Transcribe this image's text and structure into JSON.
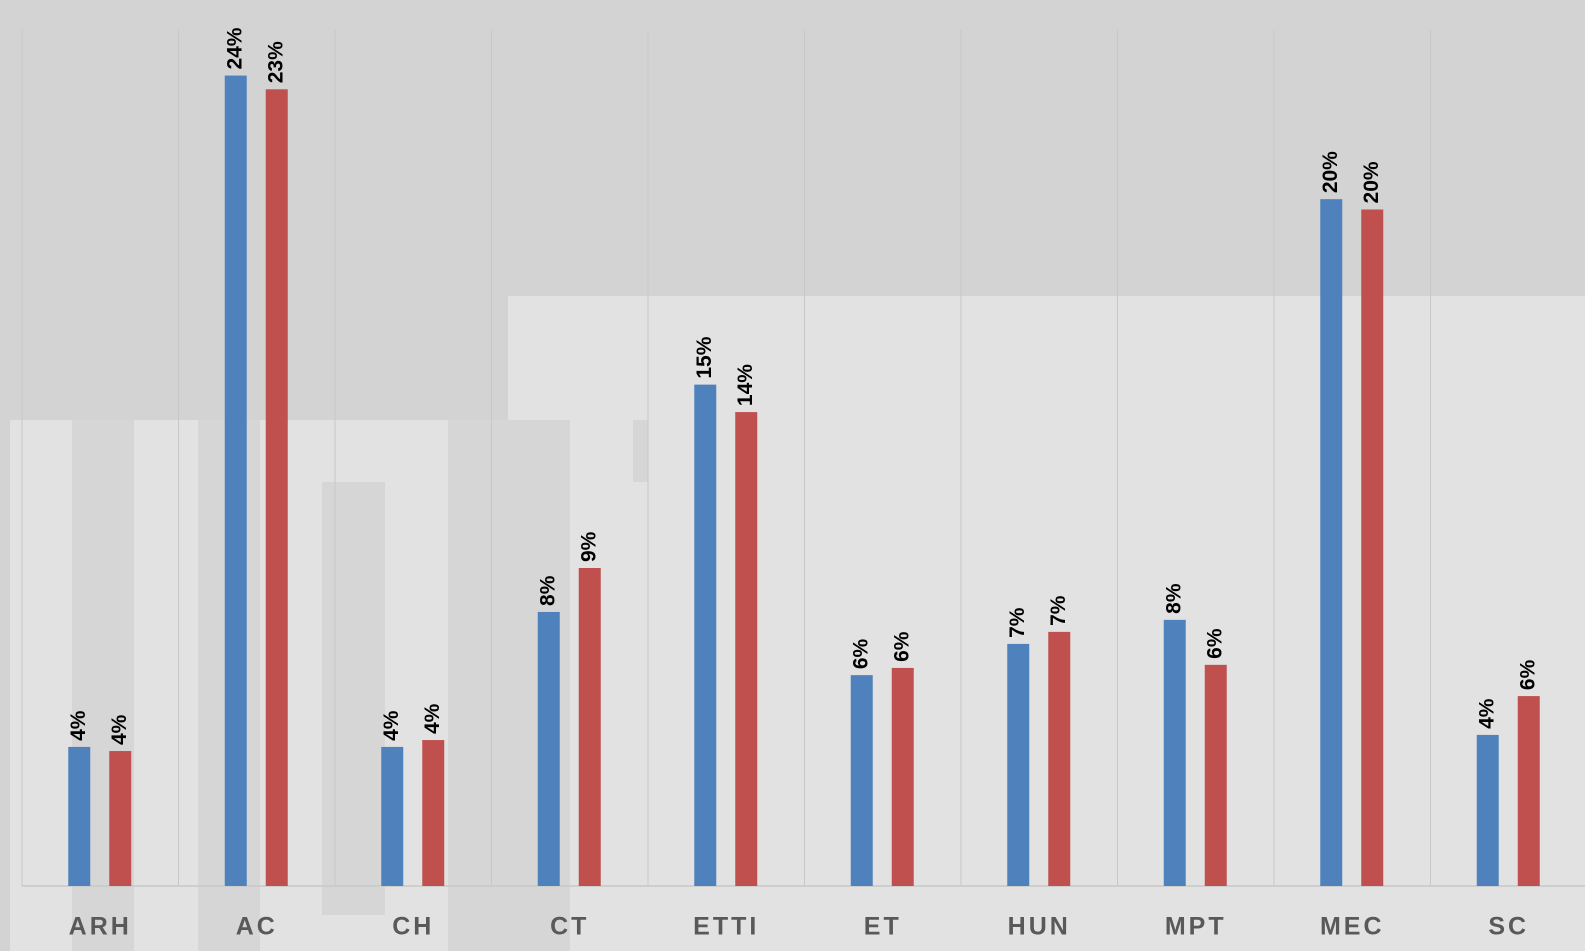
{
  "chart_data": {
    "type": "bar",
    "categories": [
      "ARH",
      "AC",
      "CH",
      "CT",
      "ETTI",
      "ET",
      "HUN",
      "MPT",
      "MEC",
      "SC"
    ],
    "series": [
      {
        "color": "#4f81bd",
        "values": [
          4.05,
          23.6,
          4.05,
          7.98,
          14.6,
          6.14,
          7.05,
          7.75,
          20.0,
          4.4
        ],
        "value_labels": [
          "4%",
          "24%",
          "4%",
          "8%",
          "15%",
          "6%",
          "7%",
          "8%",
          "20%",
          "4%"
        ]
      },
      {
        "color": "#c0504d",
        "values": [
          3.93,
          23.2,
          4.25,
          9.26,
          13.8,
          6.35,
          7.4,
          6.44,
          19.7,
          5.53
        ],
        "value_labels": [
          "4%",
          "23%",
          "4%",
          "9%",
          "14%",
          "6%",
          "7%",
          "6%",
          "20%",
          "6%"
        ]
      }
    ],
    "ylim": [
      0,
      25.8
    ]
  }
}
